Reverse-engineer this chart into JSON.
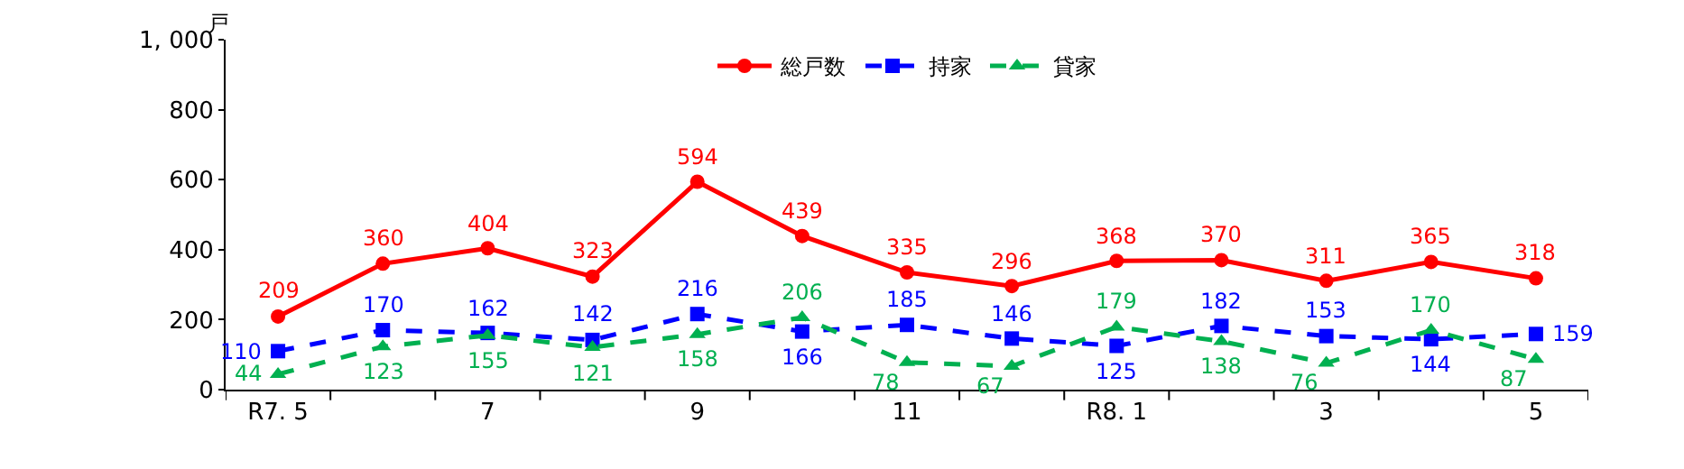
{
  "chart_data": {
    "type": "line",
    "ylabel": "戸",
    "categories": [
      "R7. 5",
      null,
      "7",
      null,
      "9",
      null,
      "11",
      null,
      "R8. 1",
      null,
      "3",
      null,
      "5"
    ],
    "series": [
      {
        "name": "総戸数",
        "color": "#ff0000",
        "marker": "circle",
        "line_style": "solid",
        "values": [
          209,
          360,
          404,
          323,
          594,
          439,
          335,
          296,
          368,
          370,
          311,
          365,
          318
        ]
      },
      {
        "name": "持家",
        "color": "#0000ff",
        "marker": "square",
        "line_style": "dashed",
        "values": [
          110,
          170,
          162,
          142,
          216,
          166,
          185,
          146,
          125,
          182,
          153,
          144,
          159
        ]
      },
      {
        "name": "貸家",
        "color": "#00b050",
        "marker": "triangle",
        "line_style": "dashed",
        "values": [
          44,
          123,
          155,
          121,
          158,
          206,
          78,
          67,
          179,
          138,
          76,
          170,
          87
        ]
      }
    ],
    "ylim": [
      0,
      1000
    ],
    "yticks": [
      0,
      200,
      400,
      600,
      800,
      {
        "value": 1000,
        "label": "1, 000"
      }
    ],
    "legend": "top",
    "data_labels": true
  }
}
